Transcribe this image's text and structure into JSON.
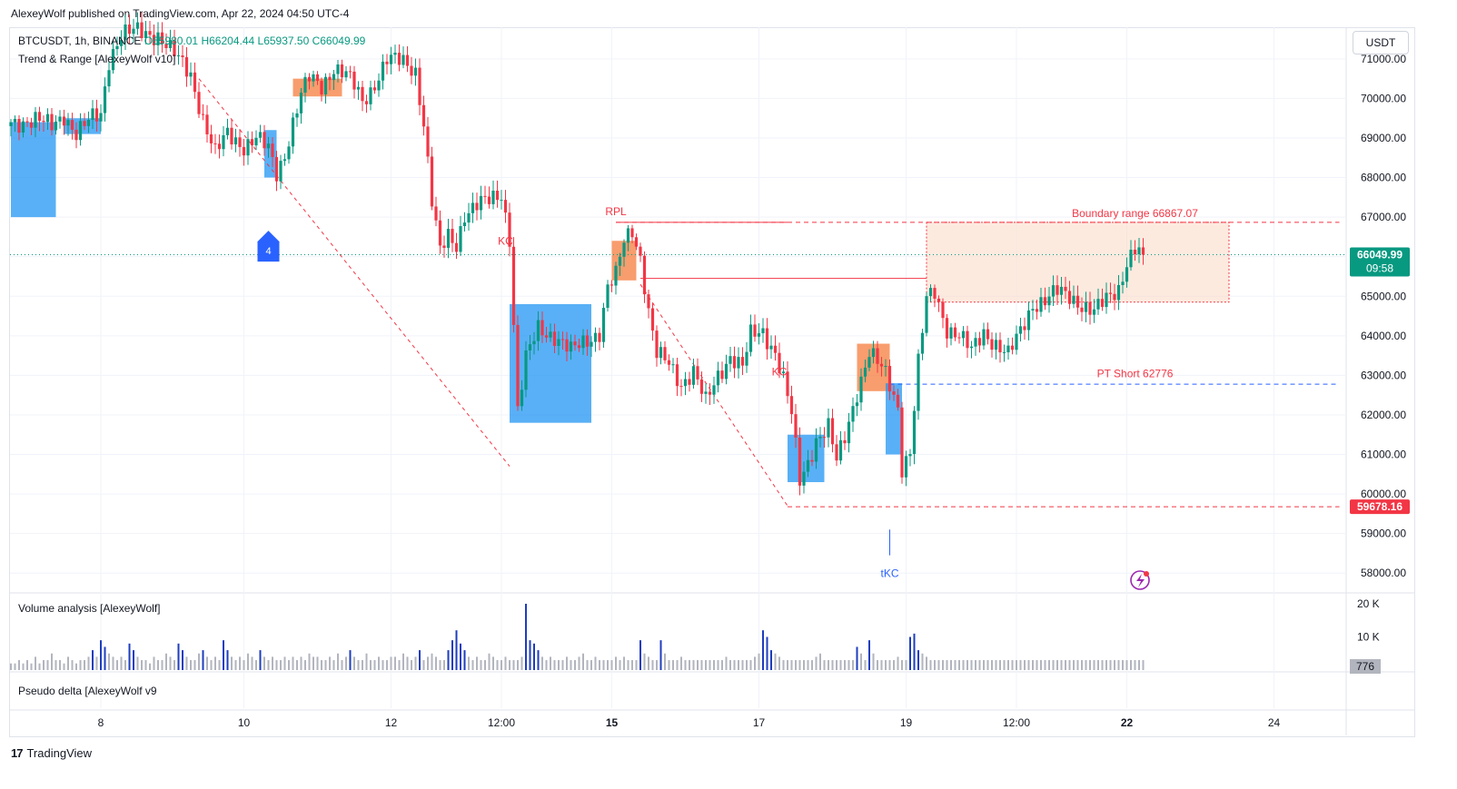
{
  "publisher_line": "AlexeyWolf published on TradingView.com, Apr 22, 2024 04:50 UTC-4",
  "symbol_line": {
    "symbol": "BTCUSDT, 1h, BINANCE",
    "open": "O65980.01",
    "high": "H66204.44",
    "low": "L65937.50",
    "close": "C66049.99"
  },
  "indicator_title": "Trend & Range [AlexeyWolf v10]",
  "volume_title": "Volume analysis [AlexeyWolf]",
  "delta_title": "Pseudo delta [AlexeyWolf v9",
  "currency_button": "USDT",
  "footer_brand": "TradingView",
  "footer_logo": "17",
  "chart_data": {
    "type": "candlestick",
    "price_axis": {
      "ticks": [
        58000,
        59000,
        60000,
        61000,
        62000,
        63000,
        64000,
        65000,
        66000,
        67000,
        68000,
        69000,
        70000,
        71000
      ],
      "tick_labels": [
        "58000.00",
        "59000.00",
        "60000.00",
        "61000.00",
        "62000.00",
        "63000.00",
        "64000.00",
        "65000.00",
        "66000.00",
        "67000.00",
        "68000.00",
        "69000.00",
        "70000.00",
        "71000.00"
      ],
      "range": [
        57500,
        71800
      ]
    },
    "time_axis": {
      "labels": [
        "8",
        "10",
        "12",
        "12:00",
        "15",
        "17",
        "19",
        "12:00",
        "22",
        "24"
      ],
      "bold": [
        false,
        false,
        false,
        false,
        true,
        false,
        false,
        false,
        true,
        false
      ],
      "bar_index": [
        22,
        57,
        93,
        120,
        147,
        183,
        219,
        246,
        273,
        309
      ]
    },
    "last_price": {
      "value": 66049.99,
      "label": "66049.99",
      "countdown": "09:58",
      "color": "#089981"
    },
    "low_marker": {
      "value": 59678.16,
      "label": "59678.16",
      "color": "#f23645"
    },
    "price_path": [
      [
        0,
        69400
      ],
      [
        6,
        69450
      ],
      [
        10,
        69300
      ],
      [
        13,
        69600
      ],
      [
        16,
        69100
      ],
      [
        20,
        69500
      ],
      [
        22,
        69600
      ],
      [
        24,
        71000
      ],
      [
        27,
        71600
      ],
      [
        31,
        71700
      ],
      [
        36,
        71600
      ],
      [
        40,
        71100
      ],
      [
        44,
        70600
      ],
      [
        47,
        69500
      ],
      [
        50,
        68600
      ],
      [
        53,
        69100
      ],
      [
        57,
        68800
      ],
      [
        60,
        69000
      ],
      [
        63,
        68700
      ],
      [
        65,
        68100
      ],
      [
        67,
        68600
      ],
      [
        69,
        69400
      ],
      [
        71,
        70100
      ],
      [
        73,
        70500
      ],
      [
        76,
        70300
      ],
      [
        79,
        70800
      ],
      [
        82,
        70600
      ],
      [
        84,
        70300
      ],
      [
        86,
        69900
      ],
      [
        88,
        70200
      ],
      [
        92,
        71000
      ],
      [
        96,
        70900
      ],
      [
        99,
        70700
      ],
      [
        101,
        69400
      ],
      [
        103,
        67400
      ],
      [
        105,
        66100
      ],
      [
        107,
        66500
      ],
      [
        109,
        66300
      ],
      [
        111,
        67100
      ],
      [
        114,
        67300
      ],
      [
        117,
        67400
      ],
      [
        120,
        67600
      ],
      [
        122,
        66500
      ],
      [
        124,
        62100
      ],
      [
        126,
        63400
      ],
      [
        129,
        64200
      ],
      [
        133,
        64000
      ],
      [
        137,
        63600
      ],
      [
        141,
        63900
      ],
      [
        144,
        64100
      ],
      [
        146,
        65200
      ],
      [
        148,
        65500
      ],
      [
        150,
        66400
      ],
      [
        152,
        66700
      ],
      [
        154,
        66000
      ],
      [
        156,
        64600
      ],
      [
        158,
        63500
      ],
      [
        161,
        63300
      ],
      [
        164,
        62800
      ],
      [
        167,
        63100
      ],
      [
        170,
        62300
      ],
      [
        173,
        63000
      ],
      [
        176,
        63500
      ],
      [
        179,
        63200
      ],
      [
        181,
        64000
      ],
      [
        184,
        64100
      ],
      [
        187,
        63600
      ],
      [
        189,
        62900
      ],
      [
        191,
        62000
      ],
      [
        193,
        60300
      ],
      [
        195,
        60800
      ],
      [
        197,
        61400
      ],
      [
        200,
        61700
      ],
      [
        202,
        60800
      ],
      [
        204,
        61400
      ],
      [
        207,
        62600
      ],
      [
        210,
        63600
      ],
      [
        212,
        63300
      ],
      [
        214,
        63000
      ],
      [
        217,
        62200
      ],
      [
        218,
        60700
      ],
      [
        220,
        61100
      ],
      [
        222,
        63300
      ],
      [
        224,
        64900
      ],
      [
        226,
        65100
      ],
      [
        229,
        64200
      ],
      [
        232,
        64000
      ],
      [
        235,
        63600
      ],
      [
        238,
        64100
      ],
      [
        241,
        63800
      ],
      [
        244,
        63500
      ],
      [
        247,
        64100
      ],
      [
        250,
        64800
      ],
      [
        253,
        64900
      ],
      [
        256,
        65100
      ],
      [
        259,
        65000
      ],
      [
        262,
        64800
      ],
      [
        265,
        64600
      ],
      [
        268,
        64900
      ],
      [
        271,
        65200
      ],
      [
        273,
        65900
      ],
      [
        275,
        66200
      ],
      [
        277,
        66049.99
      ]
    ],
    "volume_series": [
      2,
      2,
      3,
      2,
      3,
      2,
      4,
      2,
      3,
      3,
      5,
      3,
      3,
      2,
      4,
      3,
      2,
      3,
      3,
      4,
      6,
      4,
      9,
      7,
      5,
      4,
      3,
      4,
      3,
      8,
      6,
      4,
      3,
      3,
      2,
      4,
      3,
      3,
      5,
      4,
      3,
      8,
      6,
      4,
      3,
      3,
      5,
      6,
      4,
      3,
      4,
      3,
      9,
      6,
      4,
      3,
      4,
      3,
      5,
      4,
      3,
      6,
      4,
      3,
      4,
      3,
      3,
      4,
      3,
      4,
      3,
      4,
      3,
      5,
      4,
      4,
      3,
      3,
      4,
      3,
      5,
      3,
      4,
      6,
      4,
      3,
      3,
      5,
      3,
      3,
      4,
      3,
      3,
      4,
      4,
      3,
      5,
      4,
      3,
      4,
      6,
      3,
      4,
      5,
      4,
      3,
      3,
      6,
      9,
      12,
      8,
      6,
      4,
      3,
      4,
      3,
      3,
      5,
      4,
      3,
      3,
      4,
      3,
      3,
      3,
      4,
      20,
      9,
      8,
      6,
      4,
      3,
      4,
      3,
      3,
      3,
      4,
      3,
      3,
      4,
      5,
      3,
      3,
      4,
      3,
      3,
      3,
      3,
      4,
      3,
      4,
      3,
      3,
      3,
      9,
      5,
      4,
      3,
      3,
      9,
      5,
      3,
      3,
      3,
      4,
      3,
      3,
      3,
      3,
      3,
      3,
      3,
      3,
      3,
      3,
      4,
      3,
      3,
      3,
      3,
      3,
      3,
      4,
      5,
      12,
      10,
      6,
      5,
      4,
      3,
      3,
      3,
      3,
      3,
      3,
      3,
      3,
      4,
      5,
      3,
      3,
      3,
      3,
      3,
      3,
      3,
      3,
      7,
      5,
      3,
      9,
      5,
      3,
      3,
      3,
      3,
      3,
      4,
      3,
      3,
      10,
      11,
      6,
      5,
      4,
      3,
      3,
      3,
      3,
      3,
      3,
      3,
      3,
      3,
      3,
      3,
      3,
      3,
      3,
      3,
      3,
      3,
      3,
      3,
      3,
      3,
      3,
      3,
      3,
      3,
      3,
      3,
      3,
      3,
      3,
      3,
      3,
      3,
      3,
      3,
      3,
      3,
      3,
      3,
      3,
      3,
      3,
      3,
      3,
      3,
      3,
      3,
      3,
      3,
      3,
      3,
      3,
      3,
      4,
      5,
      4,
      4,
      3,
      3,
      3
    ],
    "volume_axis": {
      "tick_labels": [
        "10 K",
        "20 K"
      ],
      "ticks": [
        10000,
        20000
      ],
      "last_label": "776"
    },
    "boxes": [
      {
        "kind": "demand",
        "x0": 0,
        "x1": 11,
        "y0": 67000,
        "y1": 69400
      },
      {
        "kind": "demand",
        "x0": 13,
        "x1": 22,
        "y0": 69100,
        "y1": 69500
      },
      {
        "kind": "demand",
        "x0": 62,
        "x1": 65,
        "y0": 68000,
        "y1": 69200
      },
      {
        "kind": "supply",
        "x0": 69,
        "x1": 81,
        "y0": 70050,
        "y1": 70500
      },
      {
        "kind": "demand",
        "x0": 122,
        "x1": 142,
        "y0": 61800,
        "y1": 64800
      },
      {
        "kind": "supply",
        "x0": 147,
        "x1": 153,
        "y0": 65400,
        "y1": 66400
      },
      {
        "kind": "demand",
        "x0": 190,
        "x1": 199,
        "y0": 60300,
        "y1": 61500
      },
      {
        "kind": "supply",
        "x0": 207,
        "x1": 215,
        "y0": 62600,
        "y1": 63800
      },
      {
        "kind": "demand",
        "x0": 214,
        "x1": 218,
        "y0": 61000,
        "y1": 62800
      },
      {
        "kind": "range",
        "x0": 224,
        "x1": 298,
        "y0": 64850,
        "y1": 66867.07
      }
    ],
    "annotations": [
      {
        "text": "RPL",
        "color": "#f23645",
        "x": 148,
        "y": 67050
      },
      {
        "text": "KC",
        "color": "#f23645",
        "x": 121,
        "y": 66300
      },
      {
        "text": "KC",
        "color": "#f23645",
        "x": 188,
        "y": 63000
      },
      {
        "text": "tKC",
        "color": "#2962ff",
        "x": 215,
        "y": 57900
      },
      {
        "text": "Boundary range 66867.07",
        "color": "#f23645",
        "x": 275,
        "y": 67000
      },
      {
        "text": "PT Short 62776",
        "color": "#f23645",
        "x": 275,
        "y": 62950
      },
      {
        "text": "4",
        "color": "#ffffff",
        "x": 63,
        "y": 66150
      }
    ],
    "levels": [
      {
        "name": "boundary",
        "value": 66867.07,
        "x0": 148,
        "x1": 325,
        "color": "#f23645",
        "style": "dashed"
      },
      {
        "name": "pt_short",
        "value": 62776,
        "x0": 215,
        "x1": 325,
        "color": "#2962ff",
        "style": "dashed"
      },
      {
        "name": "range_low",
        "value": 59678.16,
        "x0": 190,
        "x1": 325,
        "color": "#f23645",
        "style": "dashed"
      },
      {
        "name": "rpl",
        "value": 66867.07,
        "x0": 148,
        "x1": 190,
        "color": "#f23645",
        "style": "solid"
      },
      {
        "name": "pullback",
        "value": 65450,
        "x0": 154,
        "x1": 224,
        "color": "#f23645",
        "style": "solid"
      }
    ],
    "trendlines": [
      {
        "from": [
          46,
          70500
        ],
        "to": [
          122,
          60700
        ],
        "color": "#f23645"
      },
      {
        "from": [
          154,
          65300
        ],
        "to": [
          190,
          59700
        ],
        "color": "#f23645"
      }
    ],
    "legend_position": "top-left",
    "grid": true
  }
}
